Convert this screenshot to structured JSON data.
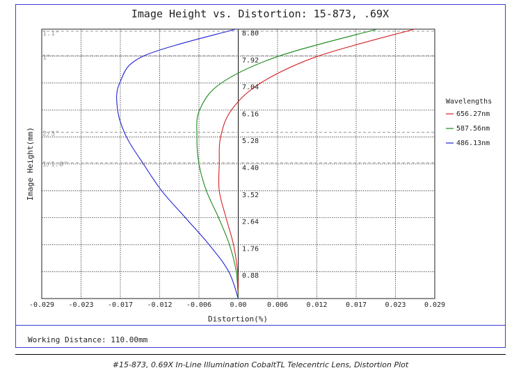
{
  "chart_data": {
    "type": "line",
    "title": "Image Height vs. Distortion: 15-873, .69X",
    "xlabel": "Distortion(%)",
    "ylabel": "Image Height(mm)",
    "xlim": [
      -0.029,
      0.029
    ],
    "ylim": [
      0,
      8.8
    ],
    "x_ticks": [
      "-0.029",
      "-0.023",
      "-0.017",
      "-0.012",
      "-0.006",
      "0.00",
      "0.006",
      "0.012",
      "0.017",
      "0.023",
      "0.029"
    ],
    "y_ticks": [
      "0.88",
      "1.76",
      "2.64",
      "3.52",
      "4.40",
      "5.28",
      "6.16",
      "7.04",
      "7.92",
      "8.80"
    ],
    "grid": true,
    "legend_title": "Wavelengths",
    "legend_position": "right",
    "sensor_markers": [
      {
        "label": "1.1\"",
        "y": 8.8
      },
      {
        "label": "1\"",
        "y": 8.0
      },
      {
        "label": "2/3\"",
        "y": 5.5
      },
      {
        "label": "1/1.8\"",
        "y": 4.5
      }
    ],
    "series": [
      {
        "name": "656.27nm",
        "color": "#d62020",
        "points": [
          [
            0,
            0
          ],
          [
            -0.0001,
            0.88
          ],
          [
            -0.0007,
            1.76
          ],
          [
            -0.0018,
            2.64
          ],
          [
            -0.0028,
            3.52
          ],
          [
            -0.0028,
            4.4
          ],
          [
            -0.0026,
            5.28
          ],
          [
            -0.001,
            6.16
          ],
          [
            0.0033,
            7.04
          ],
          [
            0.0118,
            7.92
          ],
          [
            0.026,
            8.8
          ]
        ]
      },
      {
        "name": "587.56nm",
        "color": "#1a8a1a",
        "points": [
          [
            0,
            0
          ],
          [
            -0.0003,
            0.88
          ],
          [
            -0.0013,
            1.76
          ],
          [
            -0.0029,
            2.64
          ],
          [
            -0.0047,
            3.52
          ],
          [
            -0.0058,
            4.4
          ],
          [
            -0.0061,
            5.28
          ],
          [
            -0.0057,
            6.16
          ],
          [
            -0.0025,
            7.04
          ],
          [
            0.006,
            7.92
          ],
          [
            0.0205,
            8.8
          ]
        ]
      },
      {
        "name": "486.13nm",
        "color": "#2020d6",
        "points": [
          [
            0,
            0
          ],
          [
            -0.0014,
            0.88
          ],
          [
            -0.0043,
            1.76
          ],
          [
            -0.0078,
            2.64
          ],
          [
            -0.0113,
            3.52
          ],
          [
            -0.014,
            4.4
          ],
          [
            -0.0165,
            5.28
          ],
          [
            -0.0178,
            6.16
          ],
          [
            -0.0175,
            7.04
          ],
          [
            -0.014,
            7.92
          ],
          [
            -0.0004,
            8.8
          ]
        ]
      }
    ]
  },
  "footer": {
    "working_distance": "Working Distance: 110.00mm"
  },
  "caption": "#15-873, 0.69X In-Line Illumination CobaltTL Telecentric Lens, Distortion Plot"
}
